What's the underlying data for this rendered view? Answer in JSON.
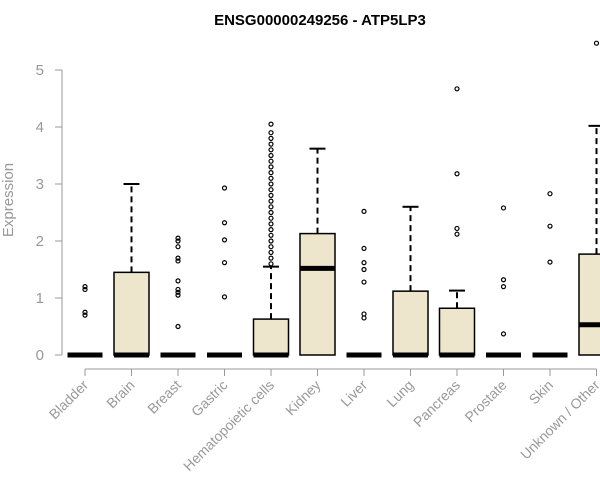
{
  "chart_data": {
    "type": "box",
    "title": "ENSG00000249256 - ATP5LP3",
    "xlabel": "",
    "ylabel": "Expression",
    "ylim": [
      0,
      5.5
    ],
    "yticks": [
      0,
      1,
      2,
      3,
      4,
      5
    ],
    "colors": {
      "box_fill": "#ede6cc",
      "stroke": "#000000",
      "axis": "#999999"
    },
    "categories": [
      "Bladder",
      "Brain",
      "Breast",
      "Gastric",
      "Hematopoietic cells",
      "Kidney",
      "Liver",
      "Lung",
      "Pancreas",
      "Prostate",
      "Skin",
      "Unknown / Other"
    ],
    "boxes": [
      {
        "label": "Bladder",
        "q1": 0,
        "median": 0,
        "q3": 0,
        "whisker_low": 0,
        "whisker_high": 0,
        "outliers": [
          0.7,
          0.75,
          1.15,
          1.2
        ]
      },
      {
        "label": "Brain",
        "q1": 0,
        "median": 0,
        "q3": 1.45,
        "whisker_low": 0,
        "whisker_high": 3.0,
        "outliers": []
      },
      {
        "label": "Breast",
        "q1": 0,
        "median": 0,
        "q3": 0,
        "whisker_low": 0,
        "whisker_high": 0,
        "outliers": [
          0.5,
          1.05,
          1.1,
          1.15,
          1.3,
          1.65,
          1.7,
          1.9,
          2.0,
          2.05
        ]
      },
      {
        "label": "Gastric",
        "q1": 0,
        "median": 0,
        "q3": 0,
        "whisker_low": 0,
        "whisker_high": 0,
        "outliers": [
          1.02,
          1.62,
          2.02,
          2.32,
          2.93
        ]
      },
      {
        "label": "Hematopoietic cells",
        "q1": 0,
        "median": 0,
        "q3": 0.63,
        "whisker_low": 0,
        "whisker_high": 1.55,
        "outliers": [
          1.6,
          1.7,
          1.8,
          1.9,
          2.0,
          2.1,
          2.2,
          2.3,
          2.4,
          2.5,
          2.6,
          2.7,
          2.8,
          2.9,
          3.0,
          3.1,
          3.2,
          3.3,
          3.4,
          3.5,
          3.6,
          3.7,
          3.8,
          3.9,
          4.05
        ]
      },
      {
        "label": "Kidney",
        "q1": 0,
        "median": 1.52,
        "q3": 2.13,
        "whisker_low": 0,
        "whisker_high": 3.62,
        "outliers": []
      },
      {
        "label": "Liver",
        "q1": 0,
        "median": 0,
        "q3": 0,
        "whisker_low": 0,
        "whisker_high": 0,
        "outliers": [
          0.65,
          0.72,
          1.28,
          1.5,
          1.62,
          1.87,
          2.52
        ]
      },
      {
        "label": "Lung",
        "q1": 0,
        "median": 0,
        "q3": 1.12,
        "whisker_low": 0,
        "whisker_high": 2.6,
        "outliers": []
      },
      {
        "label": "Pancreas",
        "q1": 0,
        "median": 0,
        "q3": 0.82,
        "whisker_low": 0,
        "whisker_high": 1.13,
        "outliers": [
          2.12,
          2.22,
          3.18,
          4.67
        ]
      },
      {
        "label": "Prostate",
        "q1": 0,
        "median": 0,
        "q3": 0,
        "whisker_low": 0,
        "whisker_high": 0,
        "outliers": [
          0.37,
          1.2,
          1.32,
          2.58
        ]
      },
      {
        "label": "Skin",
        "q1": 0,
        "median": 0,
        "q3": 0,
        "whisker_low": 0,
        "whisker_high": 0,
        "outliers": [
          1.63,
          2.26,
          2.83
        ]
      },
      {
        "label": "Unknown / Other",
        "q1": 0,
        "median": 0.53,
        "q3": 1.77,
        "whisker_low": 0,
        "whisker_high": 4.02,
        "outliers": [
          5.47
        ]
      }
    ]
  }
}
